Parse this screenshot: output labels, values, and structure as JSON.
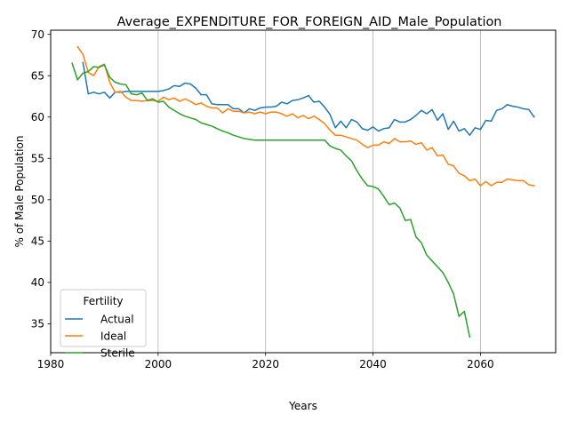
{
  "chart_data": {
    "type": "line",
    "title": "Average_EXPENDITURE_FOR_FOREIGN_AID_Male_Population",
    "xlabel": "Years",
    "ylabel": "% of Male Population",
    "xlim": [
      1980,
      2074
    ],
    "ylim": [
      31.5,
      70.5
    ],
    "xticks": [
      1980,
      2000,
      2020,
      2040,
      2060
    ],
    "yticks": [
      35,
      40,
      45,
      50,
      55,
      60,
      65,
      70
    ],
    "grid": "x-major",
    "legend": {
      "title": "Fertility",
      "placement": "lower-left"
    },
    "series": [
      {
        "name": "Actual",
        "color": "#1f77b4",
        "x": [
          1986,
          1987,
          1988,
          1989,
          1990,
          1991,
          1992,
          1993,
          1994,
          1995,
          1996,
          1997,
          1998,
          1999,
          2000,
          2001,
          2002,
          2003,
          2004,
          2005,
          2006,
          2007,
          2008,
          2009,
          2010,
          2011,
          2012,
          2013,
          2014,
          2015,
          2016,
          2017,
          2018,
          2019,
          2020,
          2021,
          2022,
          2023,
          2024,
          2025,
          2026,
          2027,
          2028,
          2029,
          2030,
          2031,
          2032,
          2033,
          2034,
          2035,
          2036,
          2037,
          2038,
          2039,
          2040,
          2041,
          2042,
          2043,
          2044,
          2045,
          2046,
          2047,
          2048,
          2049,
          2050,
          2051,
          2052,
          2053,
          2054,
          2055,
          2056,
          2057,
          2058,
          2059,
          2060,
          2061,
          2062,
          2063,
          2064,
          2065,
          2066,
          2067,
          2068,
          2069,
          2070
        ],
        "y": [
          66.6,
          62.8,
          63.0,
          62.8,
          63.0,
          62.3,
          63.0,
          63.0,
          63.1,
          63.1,
          63.1,
          63.1,
          63.1,
          63.1,
          63.1,
          63.2,
          63.4,
          63.8,
          63.7,
          64.1,
          64.0,
          63.5,
          62.7,
          62.7,
          61.6,
          61.5,
          61.5,
          61.5,
          61.0,
          61.0,
          60.5,
          61.0,
          60.8,
          61.1,
          61.2,
          61.2,
          61.3,
          61.8,
          61.6,
          62.0,
          62.1,
          62.3,
          62.6,
          61.8,
          61.9,
          61.2,
          60.3,
          58.7,
          59.5,
          58.7,
          59.7,
          59.4,
          58.6,
          58.4,
          58.8,
          58.3,
          58.6,
          58.7,
          59.7,
          59.4,
          59.4,
          59.7,
          60.2,
          60.8,
          60.4,
          60.9,
          59.6,
          60.4,
          58.5,
          59.5,
          58.3,
          58.6,
          57.8,
          58.7,
          58.5,
          59.6,
          59.5,
          60.8,
          61.0,
          61.5,
          61.3,
          61.2,
          61.0,
          60.9,
          60.0
        ]
      },
      {
        "name": "Ideal",
        "color": "#ff7f0e",
        "x": [
          1985,
          1986,
          1987,
          1988,
          1989,
          1990,
          1991,
          1992,
          1993,
          1994,
          1995,
          1996,
          1997,
          1998,
          1999,
          2000,
          2001,
          2002,
          2003,
          2004,
          2005,
          2006,
          2007,
          2008,
          2009,
          2010,
          2011,
          2012,
          2013,
          2014,
          2015,
          2016,
          2017,
          2018,
          2019,
          2020,
          2021,
          2022,
          2023,
          2024,
          2025,
          2026,
          2027,
          2028,
          2029,
          2030,
          2031,
          2032,
          2033,
          2034,
          2035,
          2036,
          2037,
          2038,
          2039,
          2040,
          2041,
          2042,
          2043,
          2044,
          2045,
          2046,
          2047,
          2048,
          2049,
          2050,
          2051,
          2052,
          2053,
          2054,
          2055,
          2056,
          2057,
          2058,
          2059,
          2060,
          2061,
          2062,
          2063,
          2064,
          2065,
          2066,
          2067,
          2068,
          2069,
          2070
        ],
        "y": [
          68.5,
          67.6,
          65.4,
          65.0,
          66.1,
          66.4,
          64.2,
          63.0,
          63.1,
          62.4,
          62.0,
          62.0,
          61.9,
          62.0,
          62.0,
          61.9,
          62.4,
          62.1,
          62.3,
          61.9,
          62.2,
          61.9,
          61.5,
          61.7,
          61.3,
          61.1,
          61.1,
          60.5,
          61.0,
          60.7,
          60.7,
          60.5,
          60.6,
          60.4,
          60.6,
          60.4,
          60.6,
          60.6,
          60.4,
          60.1,
          60.4,
          59.9,
          60.2,
          59.8,
          60.1,
          59.7,
          59.2,
          58.4,
          57.8,
          57.8,
          57.6,
          57.4,
          57.2,
          56.7,
          56.3,
          56.6,
          56.6,
          57.0,
          56.8,
          57.4,
          57.0,
          57.0,
          57.1,
          56.7,
          56.9,
          56.0,
          56.3,
          55.3,
          55.4,
          54.3,
          54.1,
          53.2,
          52.9,
          52.3,
          52.5,
          51.7,
          52.2,
          51.7,
          52.1,
          52.1,
          52.5,
          52.4,
          52.3,
          52.3,
          51.8,
          51.7
        ]
      },
      {
        "name": "Sterile",
        "color": "#2ca02c",
        "x": [
          1984,
          1985,
          1986,
          1987,
          1988,
          1989,
          1990,
          1991,
          1992,
          1993,
          1994,
          1995,
          1996,
          1997,
          1998,
          1999,
          2000,
          2001,
          2002,
          2003,
          2004,
          2005,
          2006,
          2007,
          2008,
          2009,
          2010,
          2011,
          2012,
          2013,
          2014,
          2015,
          2016,
          2017,
          2018,
          2019,
          2020,
          2021,
          2022,
          2023,
          2024,
          2025,
          2026,
          2027,
          2028,
          2029,
          2030,
          2031,
          2032,
          2033,
          2034,
          2035,
          2036,
          2037,
          2038,
          2039,
          2040,
          2041,
          2042,
          2043,
          2044,
          2045,
          2046,
          2047,
          2048,
          2049,
          2050,
          2051,
          2052,
          2053,
          2054,
          2055,
          2056,
          2057,
          2058
        ],
        "y": [
          66.5,
          64.5,
          65.3,
          65.5,
          66.1,
          66.0,
          66.3,
          64.8,
          64.2,
          64.0,
          63.9,
          62.8,
          62.7,
          62.9,
          62.0,
          62.2,
          61.8,
          61.9,
          61.2,
          60.8,
          60.4,
          60.1,
          59.9,
          59.7,
          59.3,
          59.1,
          58.9,
          58.6,
          58.3,
          58.1,
          57.8,
          57.6,
          57.4,
          57.3,
          57.2,
          57.2,
          57.2,
          57.2,
          57.2,
          57.2,
          57.2,
          57.2,
          57.2,
          57.2,
          57.2,
          57.2,
          57.2,
          57.2,
          56.5,
          56.2,
          56.0,
          55.3,
          54.7,
          53.5,
          52.5,
          51.7,
          51.6,
          51.3,
          50.4,
          49.4,
          49.6,
          49.0,
          47.5,
          47.6,
          45.5,
          44.8,
          43.3,
          42.6,
          41.9,
          41.2,
          40.0,
          38.6,
          35.9,
          36.5,
          33.4
        ]
      }
    ]
  }
}
